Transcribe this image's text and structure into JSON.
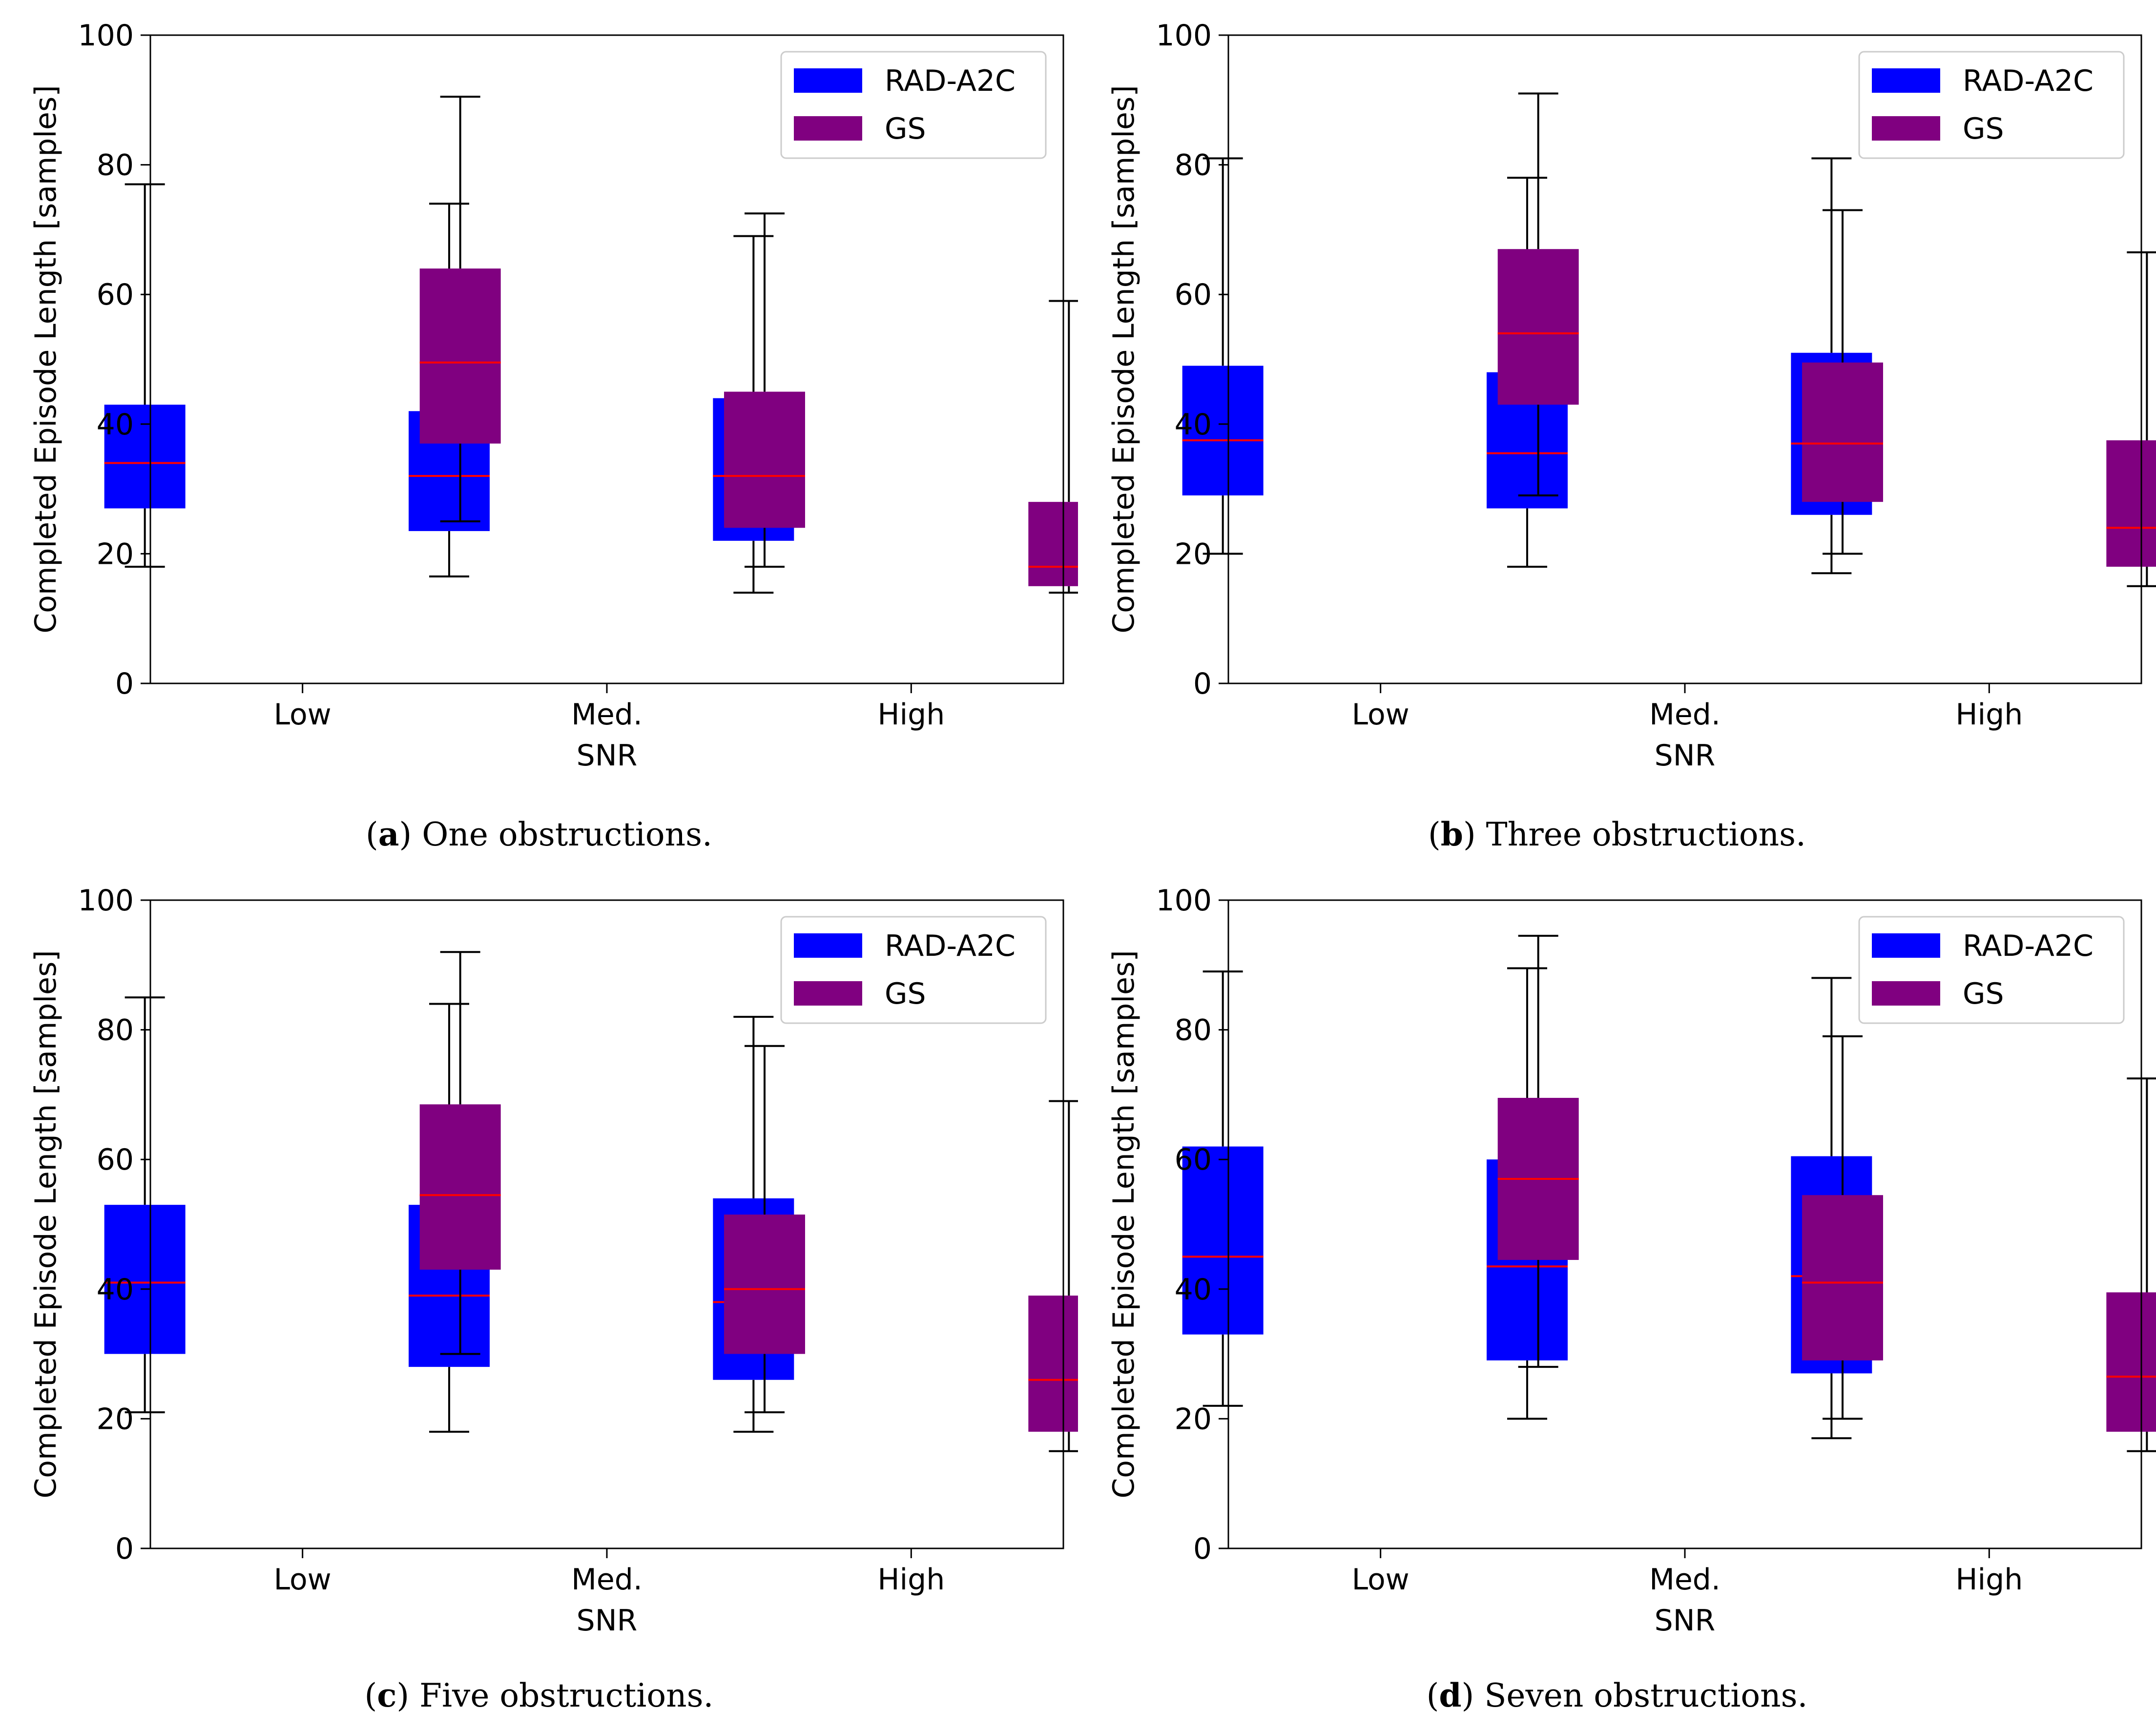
{
  "colors": {
    "rad_a2c": "#0000ff",
    "gs": "#800080",
    "median": "#ff0000",
    "whisker": "#000000",
    "axes": "#000000",
    "legend_border": "#cccccc"
  },
  "panels": [
    {
      "caption": {
        "letter": "a",
        "open": "(",
        "close": ")",
        "text": " One obstructions."
      },
      "chart_data": {
        "type": "box",
        "xlabel": "SNR",
        "ylabel": "Completed Episode Length [samples]",
        "ylim": [
          0,
          100
        ],
        "yticks": [
          "0",
          "20",
          "40",
          "60",
          "80",
          "100"
        ],
        "categories": [
          "Low",
          "Med.",
          "High"
        ],
        "legend": [
          "RAD-A2C",
          "GS"
        ],
        "legend_position": "top-right",
        "series": [
          {
            "name": "RAD-A2C",
            "boxes": [
              {
                "whislo": 18,
                "q1": 27,
                "med": 34,
                "q3": 43,
                "whishi": 77
              },
              {
                "whislo": 16.5,
                "q1": 23.5,
                "med": 32,
                "q3": 42,
                "whishi": 74
              },
              {
                "whislo": 14,
                "q1": 22,
                "med": 32,
                "q3": 44,
                "whishi": 69
              }
            ]
          },
          {
            "name": "GS",
            "boxes": [
              {
                "whislo": 25,
                "q1": 37,
                "med": 49.5,
                "q3": 64,
                "whishi": 90.5
              },
              {
                "whislo": 18,
                "q1": 24,
                "med": 32,
                "q3": 45,
                "whishi": 72.5
              },
              {
                "whislo": 14,
                "q1": 15,
                "med": 18,
                "q3": 28,
                "whishi": 59
              }
            ]
          }
        ]
      }
    },
    {
      "caption": {
        "letter": "b",
        "open": "(",
        "close": ")",
        "text": " Three obstructions."
      },
      "chart_data": {
        "type": "box",
        "xlabel": "SNR",
        "ylabel": "Completed Episode Length [samples]",
        "ylim": [
          0,
          100
        ],
        "yticks": [
          "0",
          "20",
          "40",
          "60",
          "80",
          "100"
        ],
        "categories": [
          "Low",
          "Med.",
          "High"
        ],
        "legend": [
          "RAD-A2C",
          "GS"
        ],
        "legend_position": "top-right",
        "series": [
          {
            "name": "RAD-A2C",
            "boxes": [
              {
                "whislo": 20,
                "q1": 29,
                "med": 37.5,
                "q3": 49,
                "whishi": 81
              },
              {
                "whislo": 18,
                "q1": 27,
                "med": 35.5,
                "q3": 48,
                "whishi": 78
              },
              {
                "whislo": 17,
                "q1": 26,
                "med": 37,
                "q3": 51,
                "whishi": 81
              }
            ]
          },
          {
            "name": "GS",
            "boxes": [
              {
                "whislo": 29,
                "q1": 43,
                "med": 54,
                "q3": 67,
                "whishi": 91
              },
              {
                "whislo": 20,
                "q1": 28,
                "med": 37,
                "q3": 49.5,
                "whishi": 73
              },
              {
                "whislo": 15,
                "q1": 18,
                "med": 24,
                "q3": 37.5,
                "whishi": 66.5
              }
            ]
          }
        ]
      }
    },
    {
      "caption": {
        "letter": "c",
        "open": "(",
        "close": ")",
        "text": " Five obstructions."
      },
      "chart_data": {
        "type": "box",
        "xlabel": "SNR",
        "ylabel": "Completed Episode Length [samples]",
        "ylim": [
          0,
          100
        ],
        "yticks": [
          "0",
          "20",
          "40",
          "60",
          "80",
          "100"
        ],
        "categories": [
          "Low",
          "Med.",
          "High"
        ],
        "legend": [
          "RAD-A2C",
          "GS"
        ],
        "legend_position": "top-right",
        "series": [
          {
            "name": "RAD-A2C",
            "boxes": [
              {
                "whislo": 21,
                "q1": 30,
                "med": 41,
                "q3": 53,
                "whishi": 85
              },
              {
                "whislo": 18,
                "q1": 28,
                "med": 39,
                "q3": 53,
                "whishi": 84
              },
              {
                "whislo": 18,
                "q1": 26,
                "med": 38,
                "q3": 54,
                "whishi": 82
              }
            ]
          },
          {
            "name": "GS",
            "boxes": [
              {
                "whislo": 30,
                "q1": 43,
                "med": 54.5,
                "q3": 68.5,
                "whishi": 92
              },
              {
                "whislo": 21,
                "q1": 30,
                "med": 40,
                "q3": 51.5,
                "whishi": 77.5
              },
              {
                "whislo": 15,
                "q1": 18,
                "med": 26,
                "q3": 39,
                "whishi": 69
              }
            ]
          }
        ]
      }
    },
    {
      "caption": {
        "letter": "d",
        "open": "(",
        "close": ")",
        "text": " Seven obstructions."
      },
      "chart_data": {
        "type": "box",
        "xlabel": "SNR",
        "ylabel": "Completed Episode Length [samples]",
        "ylim": [
          0,
          100
        ],
        "yticks": [
          "0",
          "20",
          "40",
          "60",
          "80",
          "100"
        ],
        "categories": [
          "Low",
          "Med.",
          "High"
        ],
        "legend": [
          "RAD-A2C",
          "GS"
        ],
        "legend_position": "top-right",
        "series": [
          {
            "name": "RAD-A2C",
            "boxes": [
              {
                "whislo": 22,
                "q1": 33,
                "med": 45,
                "q3": 62,
                "whishi": 89
              },
              {
                "whislo": 20,
                "q1": 29,
                "med": 43.5,
                "q3": 60,
                "whishi": 89.5
              },
              {
                "whislo": 17,
                "q1": 27,
                "med": 42,
                "q3": 60.5,
                "whishi": 88
              }
            ]
          },
          {
            "name": "GS",
            "boxes": [
              {
                "whislo": 28,
                "q1": 44.5,
                "med": 57,
                "q3": 69.5,
                "whishi": 94.5
              },
              {
                "whislo": 20,
                "q1": 29,
                "med": 41,
                "q3": 54.5,
                "whishi": 79
              },
              {
                "whislo": 15,
                "q1": 18,
                "med": 26.5,
                "q3": 39.5,
                "whishi": 72.5
              }
            ]
          }
        ]
      }
    }
  ]
}
